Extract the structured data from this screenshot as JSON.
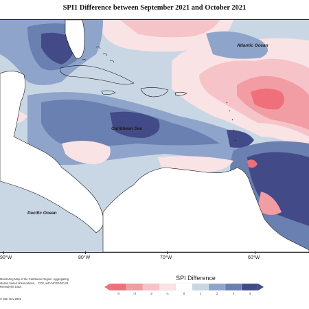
{
  "title": "SPI1 Difference between September 2021 and October 2021",
  "labels": {
    "atlantic": "Atlantic Ocean",
    "caribbean": "Caribbean Sea",
    "pacific": "Pacific Ocean"
  },
  "longitudes": [
    "90°W",
    "80°W",
    "70°W",
    "60°W"
  ],
  "legend": {
    "title": "SPI Difference",
    "ticks": [
      "-4",
      "-3",
      "-2",
      "-1",
      "0",
      "1",
      "2",
      "3",
      "4"
    ],
    "colors": [
      "#ef6f7b",
      "#f29ca3",
      "#f6c4c8",
      "#fae3e4",
      "#ffffff",
      "#c9d7e4",
      "#8ea4cb",
      "#6a80b0",
      "#424a87"
    ]
  },
  "footnote": "Monitoring Map of the Caribbean Region. Aggregating station based observations, ...CDF, with NCEP/NCAR Reanalysis Data.",
  "copyright": "© IMH Nov 2021"
}
